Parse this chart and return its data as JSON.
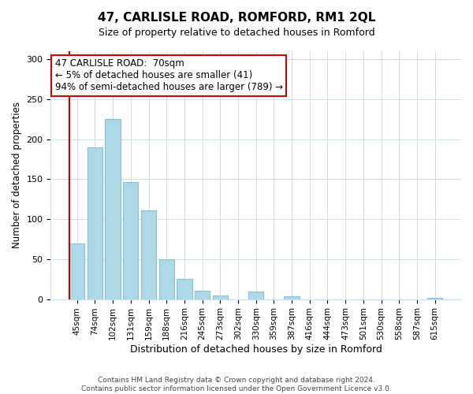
{
  "title": "47, CARLISLE ROAD, ROMFORD, RM1 2QL",
  "subtitle": "Size of property relative to detached houses in Romford",
  "xlabel": "Distribution of detached houses by size in Romford",
  "ylabel": "Number of detached properties",
  "categories": [
    "45sqm",
    "74sqm",
    "102sqm",
    "131sqm",
    "159sqm",
    "188sqm",
    "216sqm",
    "245sqm",
    "273sqm",
    "302sqm",
    "330sqm",
    "359sqm",
    "387sqm",
    "416sqm",
    "444sqm",
    "473sqm",
    "501sqm",
    "530sqm",
    "558sqm",
    "587sqm",
    "615sqm"
  ],
  "values": [
    70,
    190,
    225,
    146,
    111,
    50,
    25,
    10,
    5,
    0,
    9,
    0,
    4,
    0,
    0,
    0,
    0,
    0,
    0,
    0,
    2
  ],
  "bar_color": "#add8e6",
  "bar_edge_color": "#85c1d4",
  "highlight_color": "#cc0000",
  "red_line_index": 0,
  "annotation_title": "47 CARLISLE ROAD:  70sqm",
  "annotation_line1": "← 5% of detached houses are smaller (41)",
  "annotation_line2": "94% of semi-detached houses are larger (789) →",
  "annotation_box_color": "white",
  "annotation_box_edgecolor": "#cc0000",
  "ylim": [
    0,
    310
  ],
  "yticks": [
    0,
    50,
    100,
    150,
    200,
    250,
    300
  ],
  "footer1": "Contains HM Land Registry data © Crown copyright and database right 2024.",
  "footer2": "Contains public sector information licensed under the Open Government Licence v3.0."
}
